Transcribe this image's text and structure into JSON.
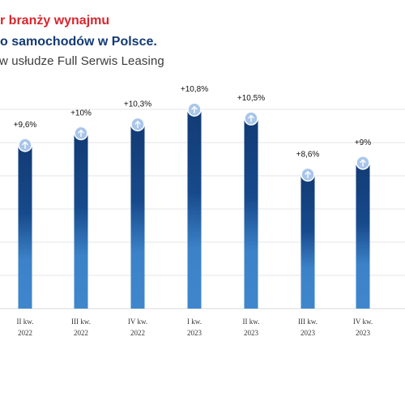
{
  "title": {
    "line1": "r branży wynajmu",
    "line2": "o samochodów w Polsce.",
    "line3": "w usłudze Full Serwis Leasing"
  },
  "chart_data": {
    "type": "bar",
    "categories": [
      [
        "II kw.",
        "2022"
      ],
      [
        "III kw.",
        "2022"
      ],
      [
        "IV kw.",
        "2022"
      ],
      [
        "I kw.",
        "2023"
      ],
      [
        "II kw.",
        "2023"
      ],
      [
        "III kw.",
        "2023"
      ],
      [
        "IV kw.",
        "2023"
      ]
    ],
    "values": [
      9.6,
      10,
      10.3,
      10.8,
      10.5,
      8.6,
      9
    ],
    "data_labels": [
      "+9,6%",
      "+10%",
      "+10,3%",
      "+10,8%",
      "+10,5%",
      "+8,6%",
      "+9%"
    ],
    "ylim": [
      0,
      12
    ],
    "grid": true,
    "marker_icon": "arrow-up-icon",
    "colors": {
      "bar_top": "#123b74",
      "bar_bottom": "#3c82c8",
      "marker_fill": "#a9c6ea",
      "marker_stroke": "#ffffff",
      "grid": "#e6e6e6"
    }
  }
}
